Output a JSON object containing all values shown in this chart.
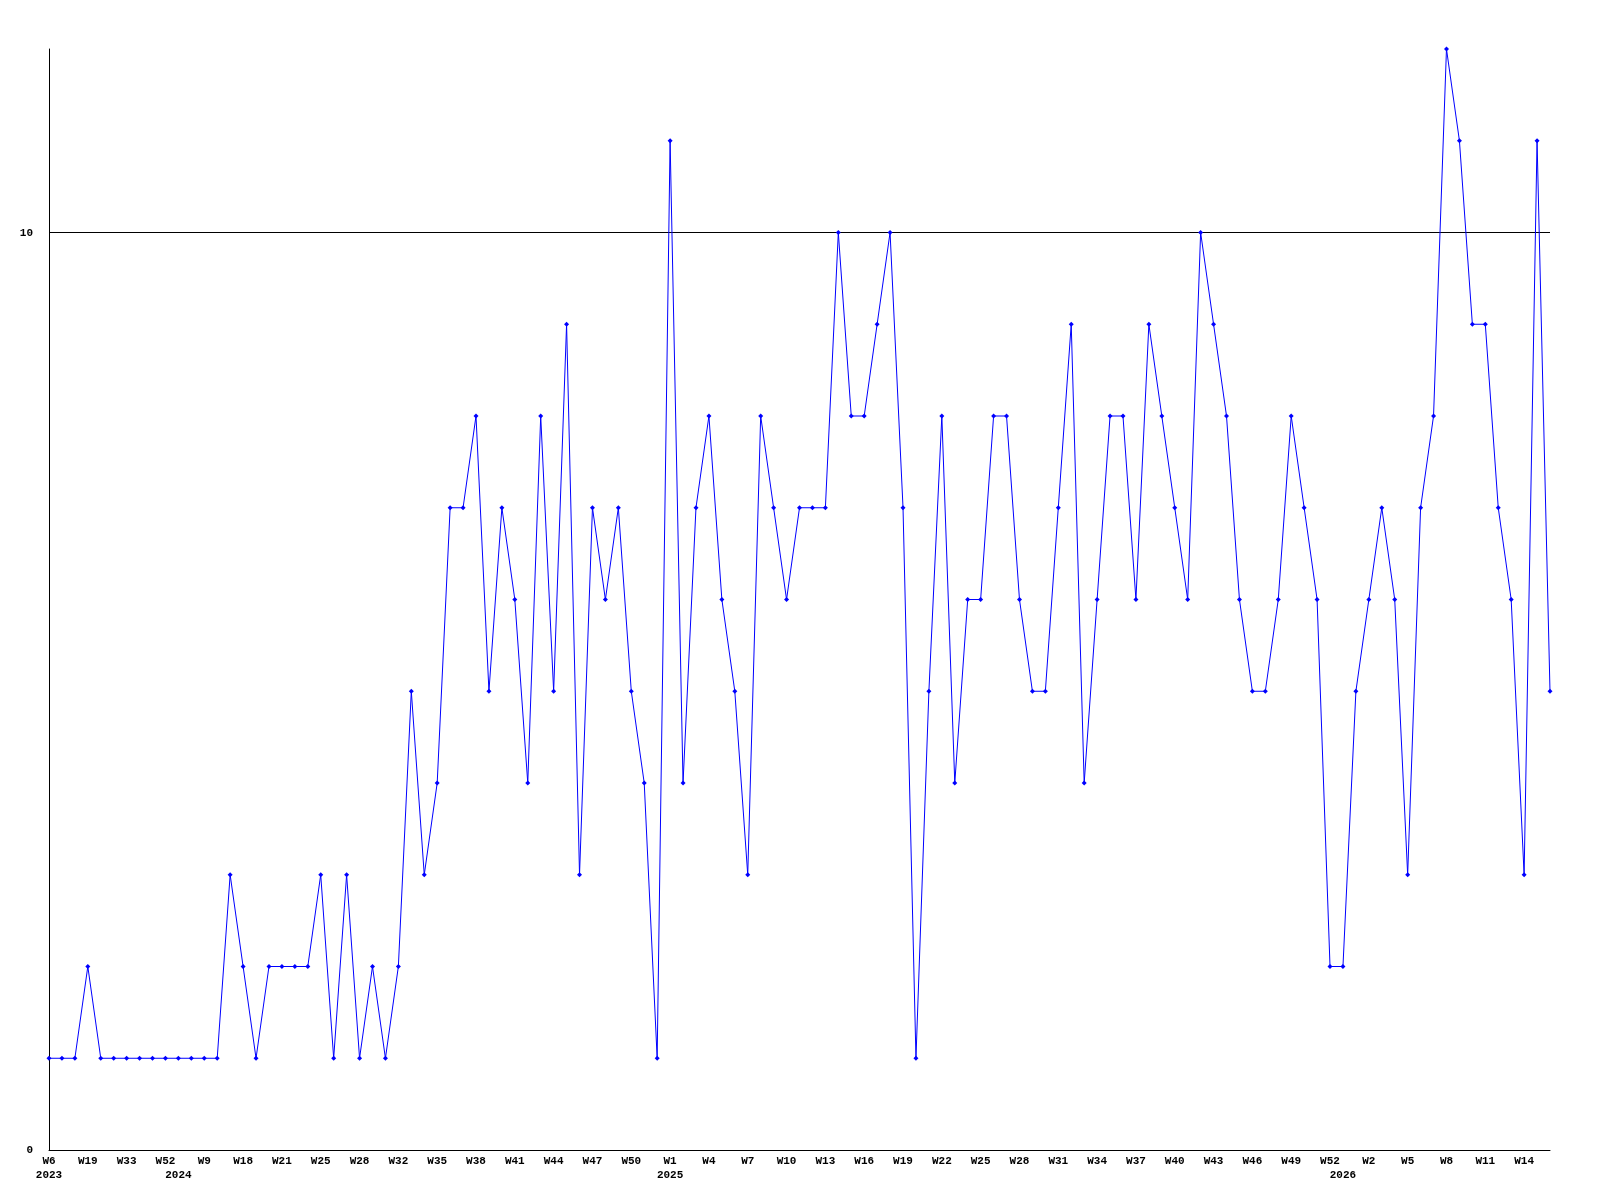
{
  "chart_data": {
    "type": "line",
    "categories": [
      "W6\n2023",
      null,
      null,
      "W19",
      null,
      null,
      "W33",
      null,
      null,
      "W52",
      "\n2024",
      null,
      "W9",
      null,
      null,
      "W18",
      null,
      null,
      "W21",
      null,
      null,
      "W25",
      null,
      null,
      "W28",
      null,
      null,
      "W32",
      null,
      null,
      "W35",
      null,
      null,
      "W38",
      null,
      null,
      "W41",
      null,
      null,
      "W44",
      null,
      null,
      "W47",
      null,
      null,
      "W50",
      null,
      null,
      "W1\n2025",
      null,
      null,
      "W4",
      null,
      null,
      "W7",
      null,
      null,
      "W10",
      null,
      null,
      "W13",
      null,
      null,
      "W16",
      null,
      null,
      "W19",
      null,
      null,
      "W22",
      null,
      null,
      "W25",
      null,
      null,
      "W28",
      null,
      null,
      "W31",
      null,
      null,
      "W34",
      null,
      null,
      "W37",
      null,
      null,
      "W40",
      null,
      null,
      "W43",
      null,
      null,
      "W46",
      null,
      null,
      "W49",
      null,
      null,
      "W52",
      "\n2026",
      null,
      "W2",
      null,
      null,
      "W5",
      null,
      null,
      "W8",
      null,
      null,
      "W11",
      null,
      null,
      "W14",
      null,
      null
    ],
    "series": [
      {
        "color": "#0000ff",
        "values": [
          1,
          1,
          1,
          2,
          1,
          1,
          1,
          1,
          1,
          1,
          1,
          1,
          1,
          1,
          3,
          2,
          1,
          2,
          2,
          2,
          2,
          3,
          1,
          3,
          1,
          2,
          1,
          2,
          5,
          3,
          4,
          7,
          7,
          8,
          5,
          7,
          6,
          4,
          8,
          5,
          9,
          3,
          7,
          6,
          7,
          5,
          4,
          1,
          11,
          4,
          7,
          8,
          6,
          5,
          3,
          8,
          7,
          6,
          7,
          7,
          7,
          10,
          8,
          8,
          9,
          10,
          7,
          1,
          5,
          8,
          4,
          6,
          6,
          8,
          8,
          6,
          5,
          5,
          7,
          9,
          4,
          6,
          8,
          8,
          6,
          9,
          8,
          7,
          6,
          10,
          9,
          8,
          6,
          5,
          5,
          6,
          8,
          7,
          6,
          2,
          2,
          5,
          6,
          7,
          6,
          3,
          7,
          8,
          12,
          11,
          9,
          9,
          7,
          6,
          3,
          11,
          5
        ]
      }
    ],
    "ylim": [
      0,
      12
    ],
    "yticks": [
      0,
      10
    ],
    "grid": "y",
    "marker": "diamond",
    "line_style": "solid"
  }
}
